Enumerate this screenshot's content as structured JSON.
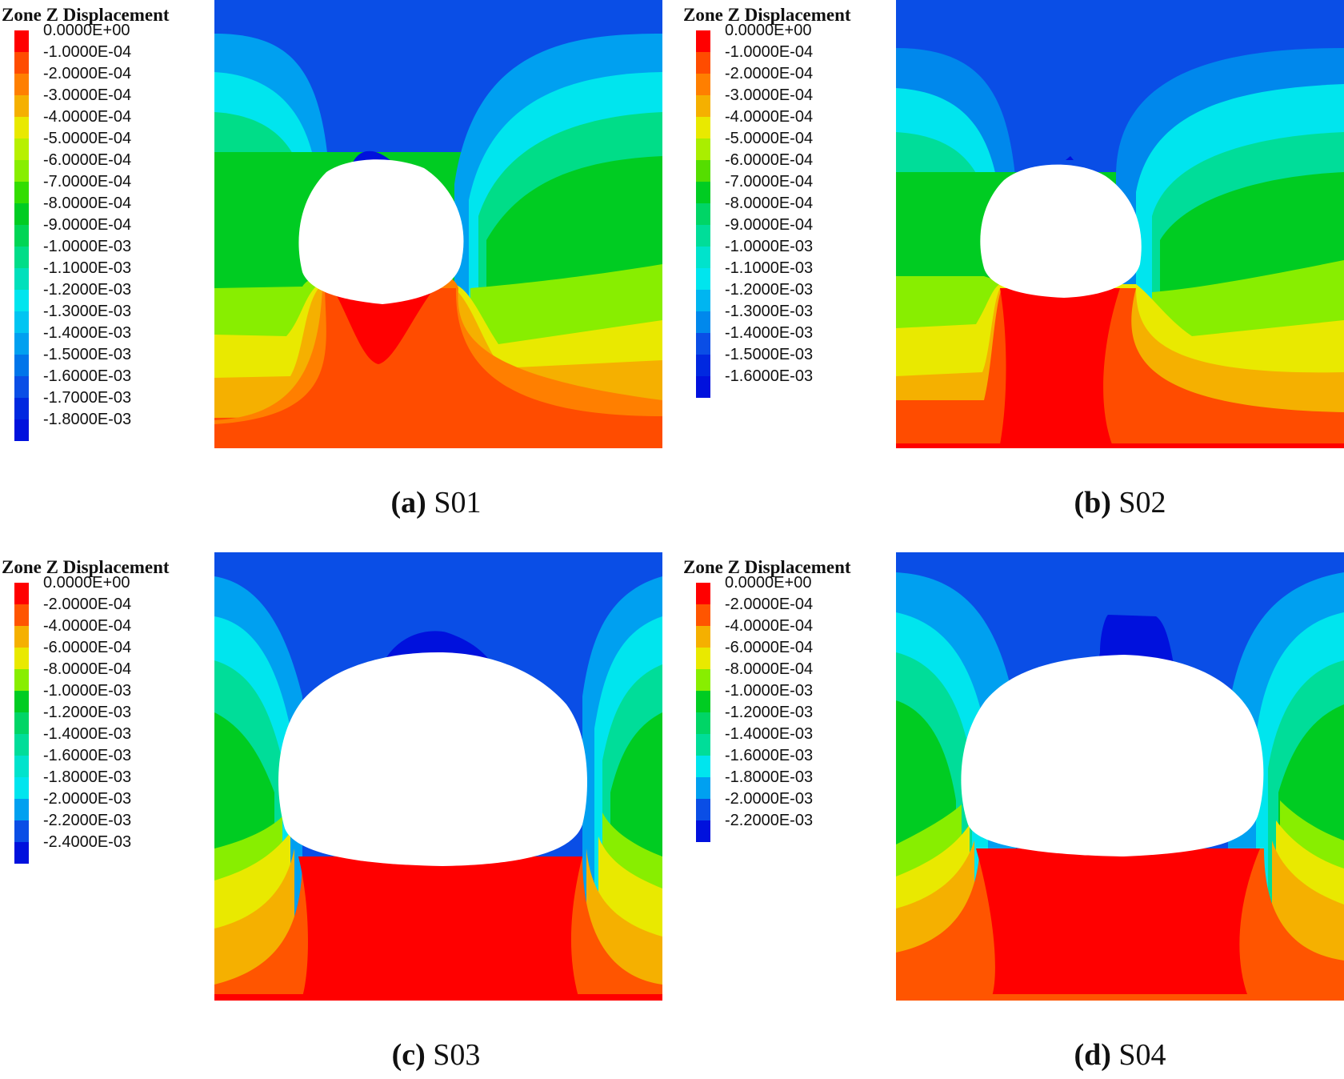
{
  "colors": {
    "blue_dark": "#0011dd",
    "blue_mid": "#0a4ee6",
    "blue_light": "#00a0f0",
    "cyan": "#00e5ee",
    "teal": "#00dd99",
    "green": "#00cc22",
    "lime": "#88ee00",
    "yellow": "#e9e900",
    "orange_light": "#f5b000",
    "orange": "#ff7f00",
    "red_orange": "#ff4c00",
    "red": "#ff0000"
  },
  "panels": [
    {
      "id": "a",
      "legend_title": "Zone Z Displacement",
      "caption_letter": "(a)",
      "caption_text": " S01",
      "legend": [
        {
          "label": "0.0000E+00",
          "color": "#ff0000"
        },
        {
          "label": "-1.0000E-04",
          "color": "#ff4c00"
        },
        {
          "label": "-2.0000E-04",
          "color": "#ff7f00"
        },
        {
          "label": "-3.0000E-04",
          "color": "#f5b000"
        },
        {
          "label": "-4.0000E-04",
          "color": "#e9e900"
        },
        {
          "label": "-5.0000E-04",
          "color": "#b8f000"
        },
        {
          "label": "-6.0000E-04",
          "color": "#88ee00"
        },
        {
          "label": "-7.0000E-04",
          "color": "#33dd00"
        },
        {
          "label": "-8.0000E-04",
          "color": "#00cc22"
        },
        {
          "label": "-9.0000E-04",
          "color": "#00d555"
        },
        {
          "label": "-1.0000E-03",
          "color": "#00dd88"
        },
        {
          "label": "-1.1000E-03",
          "color": "#00e0bb"
        },
        {
          "label": "-1.2000E-03",
          "color": "#00e5ee"
        },
        {
          "label": "-1.3000E-03",
          "color": "#00c5f2"
        },
        {
          "label": "-1.4000E-03",
          "color": "#00a0f0"
        },
        {
          "label": "-1.5000E-03",
          "color": "#0075ea"
        },
        {
          "label": "-1.6000E-03",
          "color": "#0a4ee6"
        },
        {
          "label": "-1.7000E-03",
          "color": "#0028e0"
        },
        {
          "label": "-1.8000E-03",
          "color": "#0011dd"
        }
      ]
    },
    {
      "id": "b",
      "legend_title": "Zone Z Displacement",
      "caption_letter": "(b)",
      "caption_text": " S02",
      "legend": [
        {
          "label": "0.0000E+00",
          "color": "#ff0000"
        },
        {
          "label": "-1.0000E-04",
          "color": "#ff4c00"
        },
        {
          "label": "-2.0000E-04",
          "color": "#ff7f00"
        },
        {
          "label": "-3.0000E-04",
          "color": "#f5b000"
        },
        {
          "label": "-4.0000E-04",
          "color": "#e9e900"
        },
        {
          "label": "-5.0000E-04",
          "color": "#aaee00"
        },
        {
          "label": "-6.0000E-04",
          "color": "#55dd00"
        },
        {
          "label": "-7.0000E-04",
          "color": "#00cc22"
        },
        {
          "label": "-8.0000E-04",
          "color": "#00d566"
        },
        {
          "label": "-9.0000E-04",
          "color": "#00dd99"
        },
        {
          "label": "-1.0000E-03",
          "color": "#00e3cc"
        },
        {
          "label": "-1.1000E-03",
          "color": "#00e5ee"
        },
        {
          "label": "-1.2000E-03",
          "color": "#00b5f0"
        },
        {
          "label": "-1.3000E-03",
          "color": "#0088ec"
        },
        {
          "label": "-1.4000E-03",
          "color": "#0a4ee6"
        },
        {
          "label": "-1.5000E-03",
          "color": "#0028e0"
        },
        {
          "label": "-1.6000E-03",
          "color": "#0011dd"
        }
      ]
    },
    {
      "id": "c",
      "legend_title": "Zone Z Displacement",
      "caption_letter": "(c)",
      "caption_text": " S03",
      "legend": [
        {
          "label": "0.0000E+00",
          "color": "#ff0000"
        },
        {
          "label": "-2.0000E-04",
          "color": "#ff5500"
        },
        {
          "label": "-4.0000E-04",
          "color": "#f5b000"
        },
        {
          "label": "-6.0000E-04",
          "color": "#e9e900"
        },
        {
          "label": "-8.0000E-04",
          "color": "#88ee00"
        },
        {
          "label": "-1.0000E-03",
          "color": "#00cc22"
        },
        {
          "label": "-1.2000E-03",
          "color": "#00d566"
        },
        {
          "label": "-1.4000E-03",
          "color": "#00dd99"
        },
        {
          "label": "-1.6000E-03",
          "color": "#00e3cc"
        },
        {
          "label": "-1.8000E-03",
          "color": "#00e5ee"
        },
        {
          "label": "-2.0000E-03",
          "color": "#00a0f0"
        },
        {
          "label": "-2.2000E-03",
          "color": "#0a4ee6"
        },
        {
          "label": "-2.4000E-03",
          "color": "#0011dd"
        }
      ]
    },
    {
      "id": "d",
      "legend_title": "Zone Z Displacement",
      "caption_letter": "(d)",
      "caption_text": " S04",
      "legend": [
        {
          "label": "0.0000E+00",
          "color": "#ff0000"
        },
        {
          "label": "-2.0000E-04",
          "color": "#ff5500"
        },
        {
          "label": "-4.0000E-04",
          "color": "#f5b000"
        },
        {
          "label": "-6.0000E-04",
          "color": "#e9e900"
        },
        {
          "label": "-8.0000E-04",
          "color": "#88ee00"
        },
        {
          "label": "-1.0000E-03",
          "color": "#00cc22"
        },
        {
          "label": "-1.2000E-03",
          "color": "#00d566"
        },
        {
          "label": "-1.4000E-03",
          "color": "#00dd99"
        },
        {
          "label": "-1.6000E-03",
          "color": "#00e5ee"
        },
        {
          "label": "-1.8000E-03",
          "color": "#00a0f0"
        },
        {
          "label": "-2.0000E-03",
          "color": "#0a4ee6"
        },
        {
          "label": "-2.2000E-03",
          "color": "#0011dd"
        }
      ]
    }
  ]
}
